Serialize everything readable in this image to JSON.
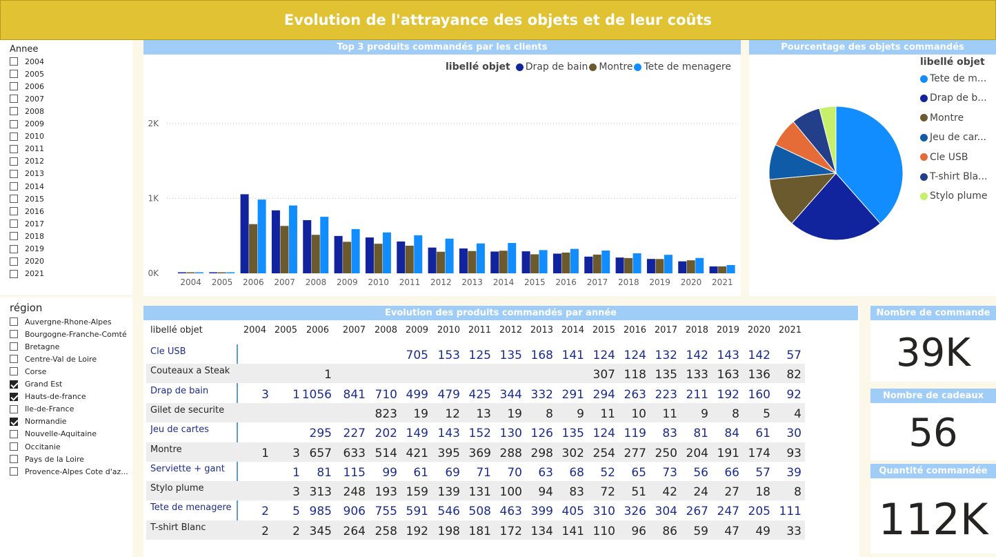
{
  "page_title": "Evolution de l'attrayance des objets et de leur coûts",
  "year_slicer": {
    "title": "Annee",
    "items": [
      {
        "label": "2004",
        "checked": false
      },
      {
        "label": "2005",
        "checked": false
      },
      {
        "label": "2006",
        "checked": false
      },
      {
        "label": "2007",
        "checked": false
      },
      {
        "label": "2008",
        "checked": false
      },
      {
        "label": "2009",
        "checked": false
      },
      {
        "label": "2010",
        "checked": false
      },
      {
        "label": "2011",
        "checked": false
      },
      {
        "label": "2012",
        "checked": false
      },
      {
        "label": "2013",
        "checked": false
      },
      {
        "label": "2014",
        "checked": false
      },
      {
        "label": "2015",
        "checked": false
      },
      {
        "label": "2016",
        "checked": false
      },
      {
        "label": "2017",
        "checked": false
      },
      {
        "label": "2018",
        "checked": false
      },
      {
        "label": "2019",
        "checked": false
      },
      {
        "label": "2020",
        "checked": false
      },
      {
        "label": "2021",
        "checked": false
      }
    ]
  },
  "region_slicer": {
    "title": "région",
    "items": [
      {
        "label": "Auvergne-Rhone-Alpes",
        "checked": false
      },
      {
        "label": "Bourgogne-Franche-Comté",
        "checked": false
      },
      {
        "label": "Bretagne",
        "checked": false
      },
      {
        "label": "Centre-Val de Loire",
        "checked": false
      },
      {
        "label": "Corse",
        "checked": false
      },
      {
        "label": "Grand Est",
        "checked": true
      },
      {
        "label": "Hauts-de-france",
        "checked": true
      },
      {
        "label": "Ile-de-France",
        "checked": false
      },
      {
        "label": "Normandie",
        "checked": true
      },
      {
        "label": "Nouvelle-Aquitaine",
        "checked": false
      },
      {
        "label": "Occitanie",
        "checked": false
      },
      {
        "label": "Pays de la Loire",
        "checked": false
      },
      {
        "label": "Provence-Alpes Cote d'az..."
      }
    ]
  },
  "bar_chart": {
    "header": "Top 3 produits commandés par les clients",
    "chart_data": {
      "type": "bar",
      "legend_title": "libellé objet",
      "categories": [
        "2004",
        "2005",
        "2006",
        "2007",
        "2008",
        "2009",
        "2010",
        "2011",
        "2012",
        "2013",
        "2014",
        "2015",
        "2016",
        "2017",
        "2018",
        "2019",
        "2020",
        "2021"
      ],
      "series": [
        {
          "name": "Drap de bain",
          "color": "#12239e",
          "values": [
            3,
            1,
            1056,
            841,
            710,
            499,
            479,
            425,
            344,
            332,
            291,
            294,
            263,
            223,
            211,
            192,
            160,
            92
          ]
        },
        {
          "name": "Montre",
          "color": "#6b5a2d",
          "values": [
            1,
            3,
            657,
            633,
            514,
            421,
            395,
            369,
            288,
            298,
            302,
            254,
            277,
            250,
            204,
            191,
            174,
            93
          ]
        },
        {
          "name": "Tete de menagere",
          "color": "#118dff",
          "values": [
            2,
            5,
            985,
            906,
            755,
            591,
            546,
            508,
            463,
            399,
            405,
            310,
            326,
            304,
            267,
            247,
            205,
            111
          ]
        }
      ],
      "yticks": [
        "0K",
        "1K",
        "2K"
      ],
      "ylim": [
        0,
        2500
      ],
      "grid": true,
      "legend_position": "top-right"
    }
  },
  "pie_chart": {
    "header": "Pourcentage des objets commandés",
    "chart_data": {
      "type": "pie",
      "legend_title": "libellé objet",
      "slices": [
        {
          "name": "Tete de menagere",
          "label": "Tete de m...",
          "value": 38.5,
          "color": "#118dff"
        },
        {
          "name": "Drap de bain",
          "label": "Drap de b...",
          "value": 23.0,
          "color": "#12239e"
        },
        {
          "name": "Montre",
          "label": "Montre",
          "value": 12.0,
          "color": "#6b5a2d"
        },
        {
          "name": "Jeu de cartes",
          "label": "Jeu de car...",
          "value": 8.5,
          "color": "#0f5ba8"
        },
        {
          "name": "Cle USB",
          "label": "Cle USB",
          "value": 7.0,
          "color": "#e66c37"
        },
        {
          "name": "T-shirt Blanc",
          "label": "T-shirt Bla...",
          "value": 7.0,
          "color": "#243f8a"
        },
        {
          "name": "Stylo plume",
          "label": "Stylo plume",
          "value": 4.0,
          "color": "#c6f06a"
        }
      ]
    }
  },
  "matrix": {
    "header": "Evolution des produits commandés par année",
    "row_header": "libellé objet",
    "years": [
      "2004",
      "2005",
      "2006",
      "2007",
      "2008",
      "2009",
      "2010",
      "2011",
      "2012",
      "2013",
      "2014",
      "2015",
      "2016",
      "2017",
      "2018",
      "2019",
      "2020",
      "2021"
    ],
    "rows": [
      {
        "label": "Cle USB",
        "values": [
          "",
          "",
          "",
          "",
          "",
          "705",
          "153",
          "125",
          "135",
          "168",
          "141",
          "124",
          "124",
          "132",
          "142",
          "143",
          "142",
          "57"
        ]
      },
      {
        "label": "Couteaux a Steak",
        "values": [
          "",
          "",
          "1",
          "",
          "",
          "",
          "",
          "",
          "",
          "",
          "",
          "307",
          "118",
          "135",
          "133",
          "163",
          "136",
          "82"
        ]
      },
      {
        "label": "Drap de bain",
        "values": [
          "3",
          "1",
          "1056",
          "841",
          "710",
          "499",
          "479",
          "425",
          "344",
          "332",
          "291",
          "294",
          "263",
          "223",
          "211",
          "192",
          "160",
          "92"
        ]
      },
      {
        "label": "Gilet de securite",
        "values": [
          "",
          "",
          "",
          "",
          "823",
          "19",
          "12",
          "13",
          "19",
          "8",
          "9",
          "11",
          "10",
          "11",
          "9",
          "8",
          "5",
          "4"
        ]
      },
      {
        "label": "Jeu de cartes",
        "values": [
          "",
          "",
          "295",
          "227",
          "202",
          "149",
          "143",
          "152",
          "130",
          "126",
          "135",
          "124",
          "119",
          "83",
          "81",
          "84",
          "61",
          "30"
        ]
      },
      {
        "label": "Montre",
        "values": [
          "1",
          "3",
          "657",
          "633",
          "514",
          "421",
          "395",
          "369",
          "288",
          "298",
          "302",
          "254",
          "277",
          "250",
          "204",
          "191",
          "174",
          "93"
        ]
      },
      {
        "label": "Serviette + gant",
        "values": [
          "",
          "1",
          "81",
          "115",
          "99",
          "61",
          "69",
          "71",
          "70",
          "63",
          "68",
          "52",
          "65",
          "73",
          "56",
          "66",
          "57",
          "39"
        ]
      },
      {
        "label": "Stylo plume",
        "values": [
          "",
          "3",
          "313",
          "248",
          "193",
          "159",
          "139",
          "131",
          "100",
          "94",
          "83",
          "72",
          "51",
          "42",
          "24",
          "27",
          "18",
          "8"
        ]
      },
      {
        "label": "Tete de menagere",
        "values": [
          "2",
          "5",
          "985",
          "906",
          "755",
          "591",
          "546",
          "508",
          "463",
          "399",
          "405",
          "310",
          "326",
          "304",
          "267",
          "247",
          "205",
          "111"
        ]
      },
      {
        "label": "T-shirt Blanc",
        "values": [
          "2",
          "2",
          "345",
          "264",
          "258",
          "192",
          "198",
          "181",
          "172",
          "134",
          "141",
          "110",
          "96",
          "86",
          "59",
          "47",
          "49",
          "33"
        ]
      }
    ]
  },
  "kpis": [
    {
      "header": "Nombre de commande",
      "value": "39K"
    },
    {
      "header": "Nombre de cadeaux",
      "value": "56"
    },
    {
      "header": "Quantité commandée",
      "value": "112K"
    }
  ]
}
